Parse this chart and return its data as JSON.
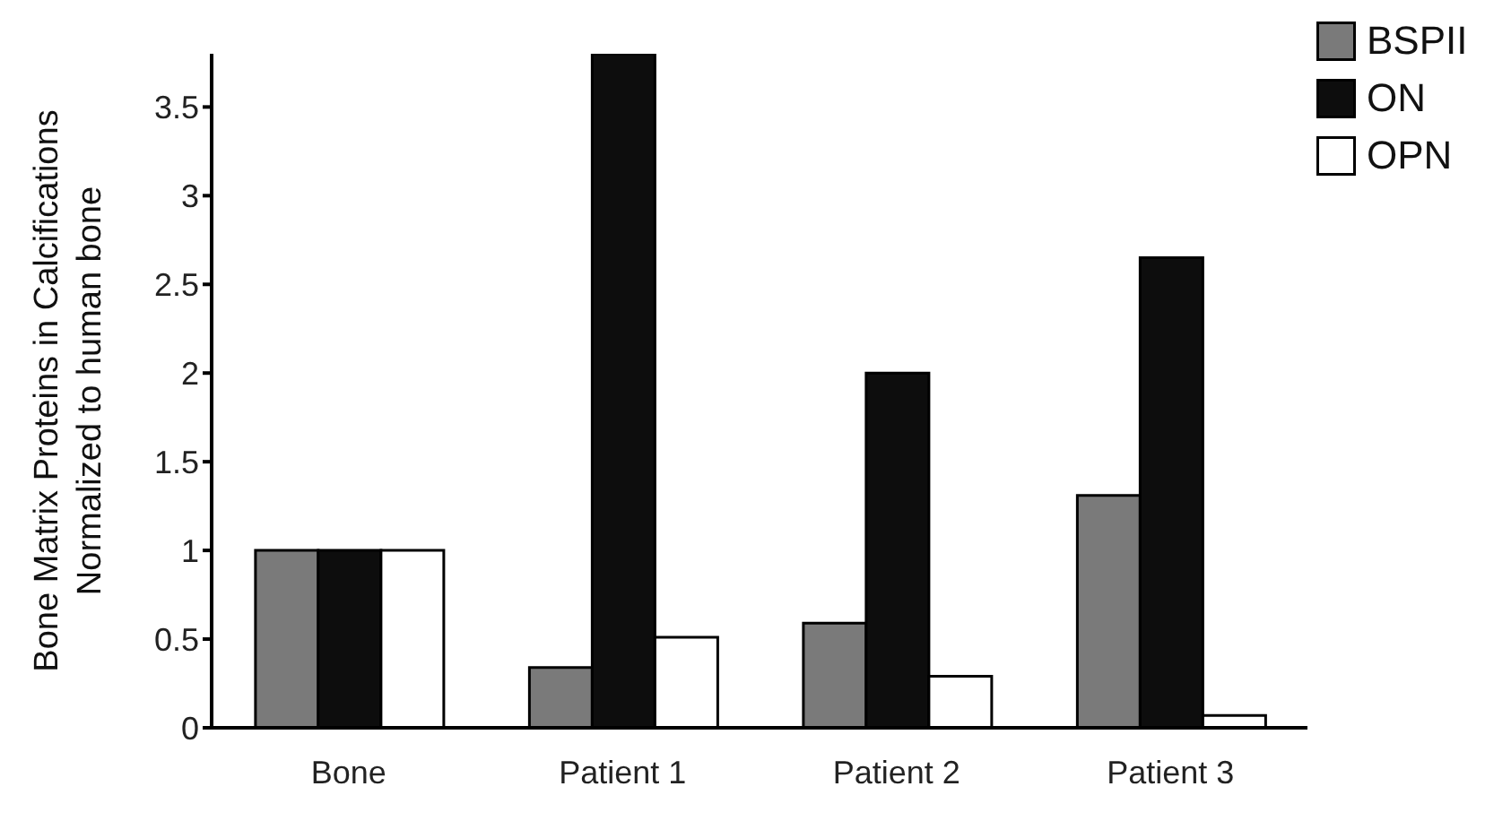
{
  "chart_data": {
    "type": "bar",
    "ylabel": "Bone Matrix Proteins in Calcifications\nNormalized to human bone",
    "categories": [
      "Bone",
      "Patient 1",
      "Patient 2",
      "Patient 3"
    ],
    "series": [
      {
        "name": "BSPII",
        "color": "#7a7a7a",
        "values": [
          1,
          0.34,
          0.59,
          1.31
        ]
      },
      {
        "name": "ON",
        "color": "#0d0d0d",
        "values": [
          1,
          3.8,
          2.0,
          2.65
        ]
      },
      {
        "name": "OPN",
        "color": "#ffffff",
        "values": [
          1,
          0.51,
          0.29,
          0.07
        ]
      }
    ],
    "ylim": [
      0,
      3.8
    ],
    "yticks": [
      0,
      0.5,
      1,
      1.5,
      2,
      2.5,
      3,
      3.5
    ],
    "grid": false,
    "legend": "top right"
  }
}
